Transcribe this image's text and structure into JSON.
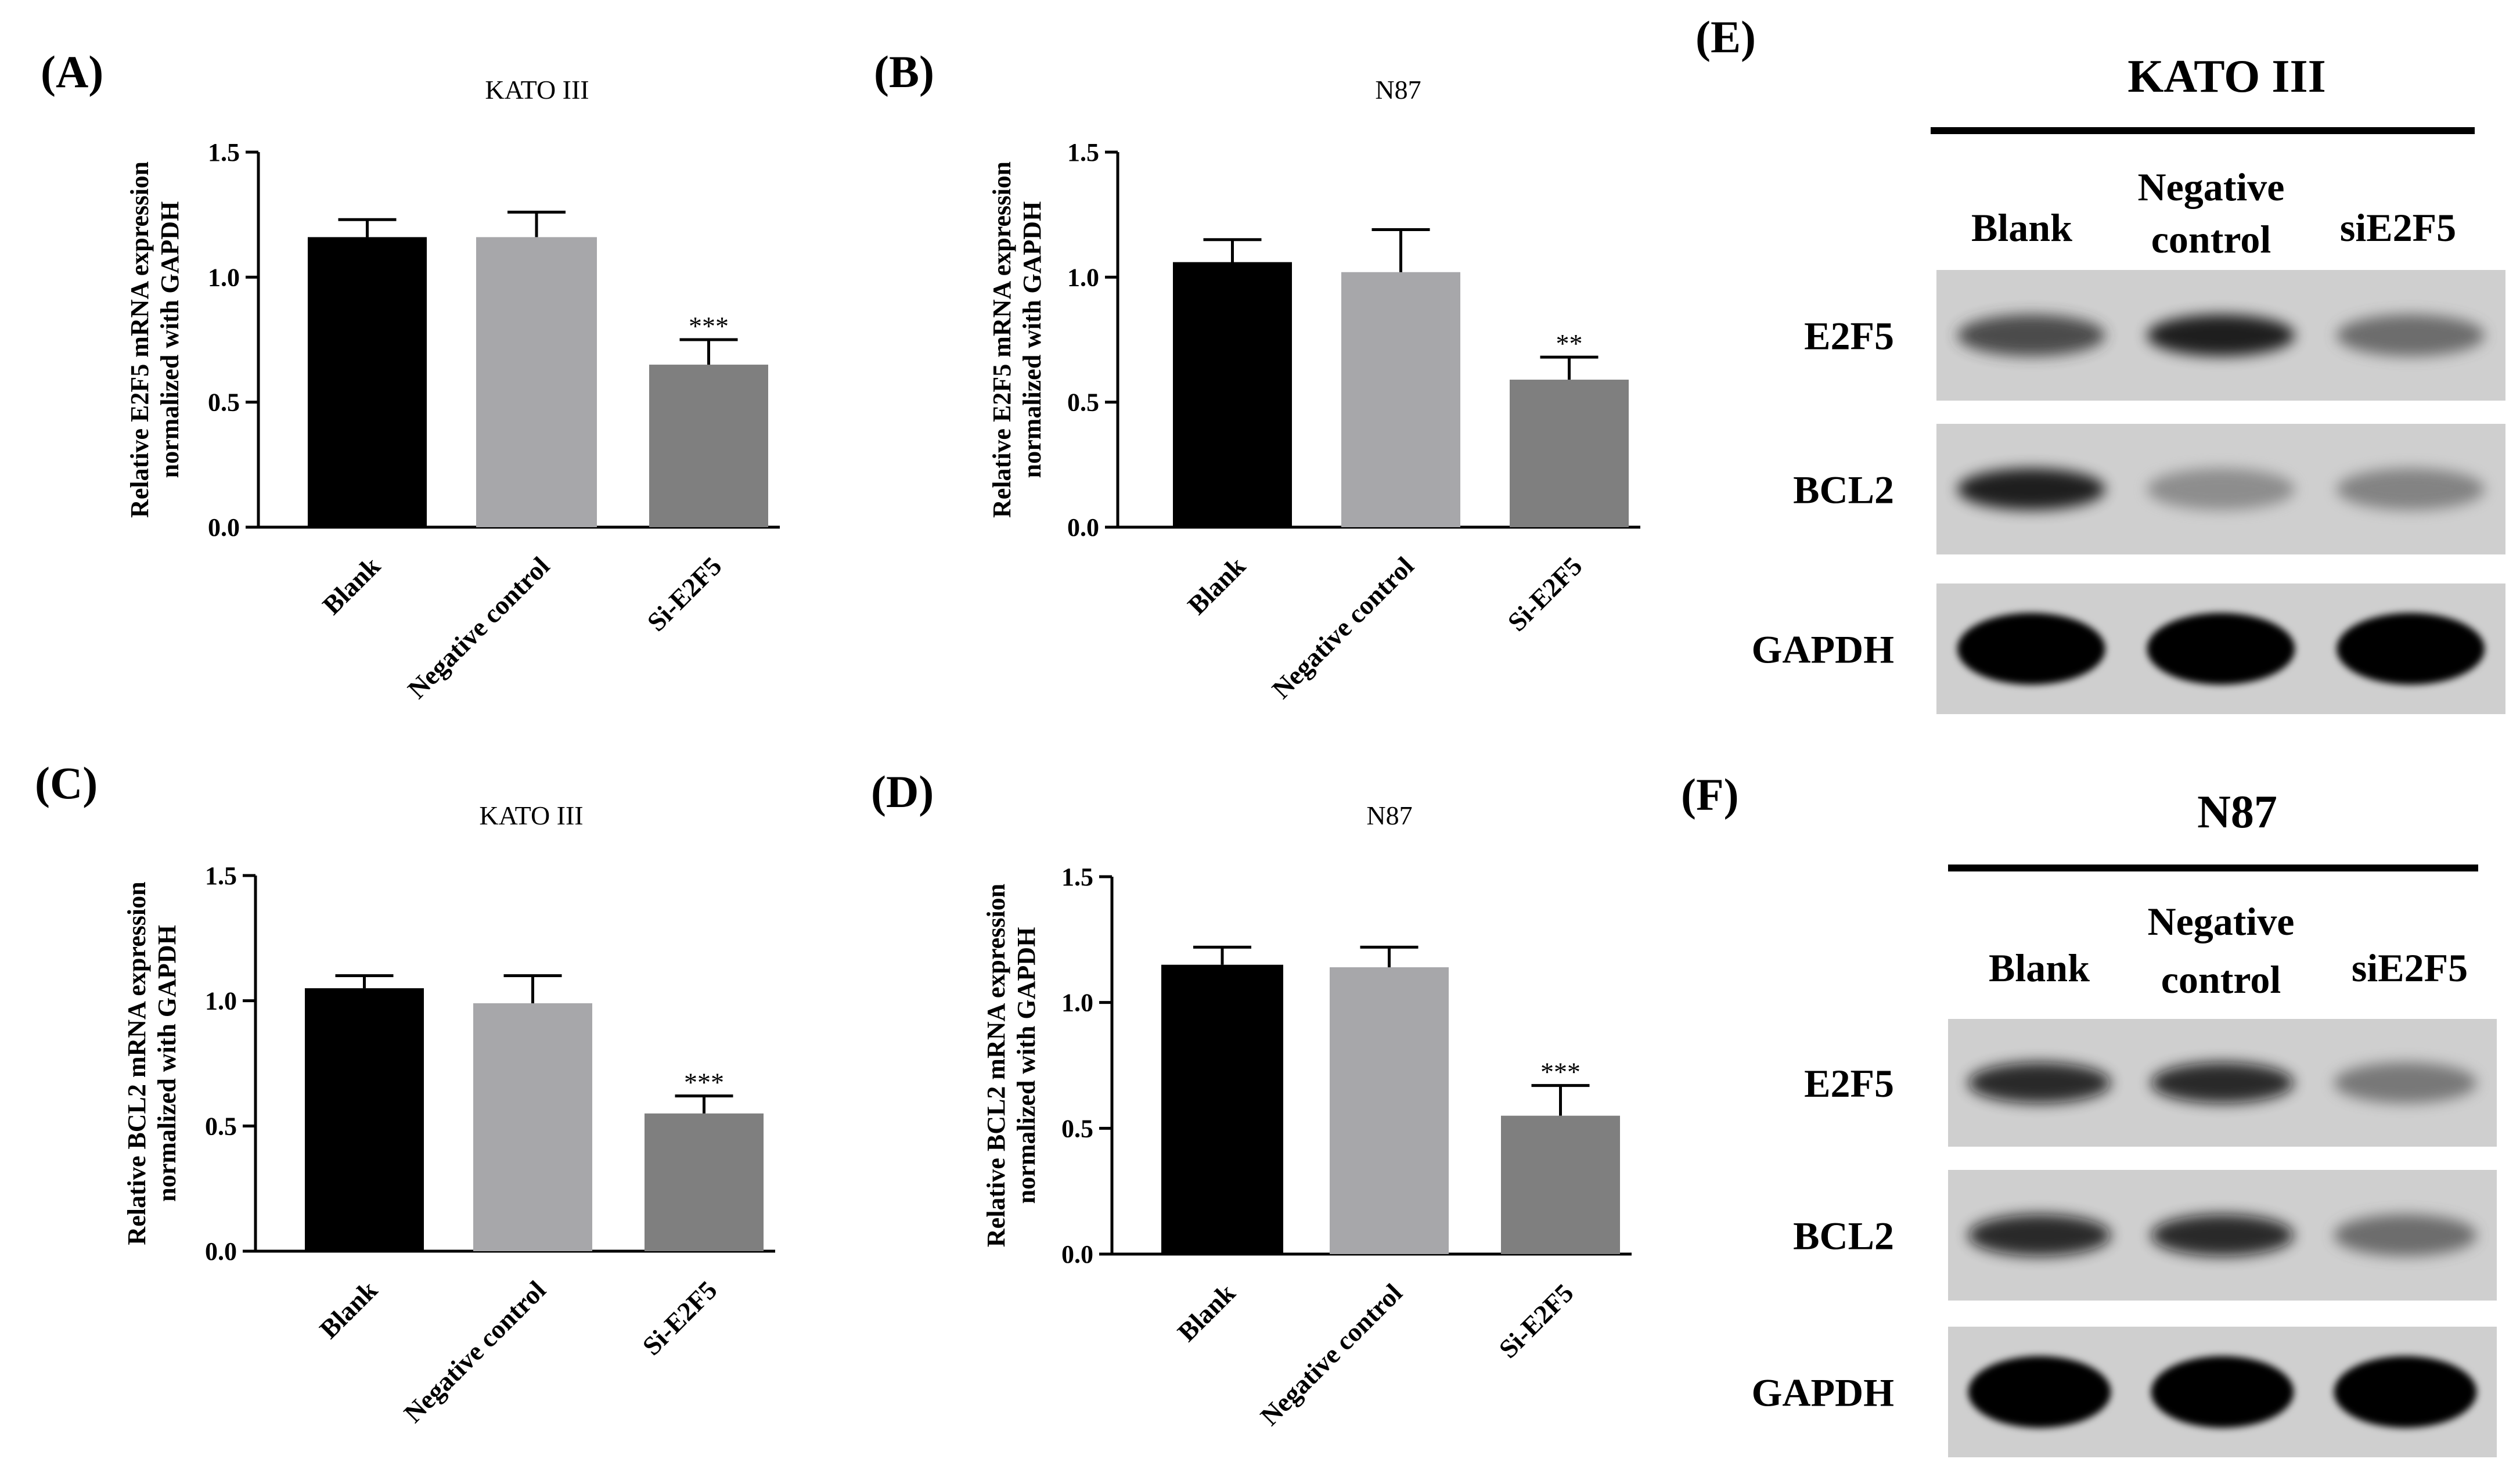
{
  "chart_data": [
    {
      "panel_label": "(A)",
      "type": "bar",
      "title": "KATO III",
      "ylabel_line1": "Relative E2F5 mRNA expression",
      "ylabel_line2": "normalized with GAPDH",
      "categories": [
        "Blank",
        "Negative control",
        "Si-E2F5"
      ],
      "values": [
        1.16,
        1.16,
        0.65
      ],
      "errors": [
        0.07,
        0.1,
        0.1
      ],
      "annotations": [
        "",
        "",
        "***"
      ],
      "colors": [
        "#000000",
        "#a7a7aa",
        "#7f7f7f"
      ],
      "ylim": [
        0,
        1.5
      ],
      "yticks": [
        "0.0",
        "0.5",
        "1.0",
        "1.5"
      ],
      "ytick_values": [
        0,
        0.5,
        1.0,
        1.5
      ]
    },
    {
      "panel_label": "(B)",
      "type": "bar",
      "title": "N87",
      "ylabel_line1": "Relative E2F5 mRNA expression",
      "ylabel_line2": "normalized with GAPDH",
      "categories": [
        "Blank",
        "Negative control",
        "Si-E2F5"
      ],
      "values": [
        1.06,
        1.02,
        0.59
      ],
      "errors": [
        0.09,
        0.17,
        0.09
      ],
      "annotations": [
        "",
        "",
        "**"
      ],
      "colors": [
        "#000000",
        "#a7a7aa",
        "#7f7f7f"
      ],
      "ylim": [
        0,
        1.5
      ],
      "yticks": [
        "0.0",
        "0.5",
        "1.0",
        "1.5"
      ],
      "ytick_values": [
        0,
        0.5,
        1.0,
        1.5
      ]
    },
    {
      "panel_label": "(C)",
      "type": "bar",
      "title": "KATO III",
      "ylabel_line1": "Relative BCL2 mRNA expression",
      "ylabel_line2": "normalized with GAPDH",
      "categories": [
        "Blank",
        "Negative control",
        "Si-E2F5"
      ],
      "values": [
        1.05,
        0.99,
        0.55
      ],
      "errors": [
        0.05,
        0.11,
        0.07
      ],
      "annotations": [
        "",
        "",
        "***"
      ],
      "colors": [
        "#000000",
        "#a7a7aa",
        "#7f7f7f"
      ],
      "ylim": [
        0,
        1.5
      ],
      "yticks": [
        "0.0",
        "0.5",
        "1.0",
        "1.5"
      ],
      "ytick_values": [
        0,
        0.5,
        1.0,
        1.5
      ]
    },
    {
      "panel_label": "(D)",
      "type": "bar",
      "title": "N87",
      "ylabel_line1": "Relative BCL2 mRNA expression",
      "ylabel_line2": "normalized with GAPDH",
      "categories": [
        "Blank",
        "Negative control",
        "Si-E2F5"
      ],
      "values": [
        1.15,
        1.14,
        0.55
      ],
      "errors": [
        0.07,
        0.08,
        0.12
      ],
      "annotations": [
        "",
        "",
        "***"
      ],
      "colors": [
        "#000000",
        "#a7a7aa",
        "#7f7f7f"
      ],
      "ylim": [
        0,
        1.5
      ],
      "yticks": [
        "0.0",
        "0.5",
        "1.0",
        "1.5"
      ],
      "ytick_values": [
        0,
        0.5,
        1.0,
        1.5
      ]
    }
  ],
  "blots": [
    {
      "panel_label": "(E)",
      "title": "KATO III",
      "lanes": [
        {
          "line1": "Blank",
          "line2": ""
        },
        {
          "line1": "Negative",
          "line2": "control"
        },
        {
          "line1": "siE2F5",
          "line2": ""
        }
      ],
      "rows": [
        {
          "label": "E2F5",
          "intensity": [
            0.75,
            0.95,
            0.6
          ]
        },
        {
          "label": "BCL2",
          "intensity": [
            1.0,
            0.45,
            0.5
          ]
        },
        {
          "label": "GAPDH",
          "intensity": [
            1.0,
            1.0,
            1.0
          ]
        }
      ]
    },
    {
      "panel_label": "(F)",
      "title": "N87",
      "lanes": [
        {
          "line1": "Blank",
          "line2": ""
        },
        {
          "line1": "Negative",
          "line2": "control"
        },
        {
          "line1": "siE2F5",
          "line2": ""
        }
      ],
      "rows": [
        {
          "label": "E2F5",
          "intensity": [
            0.9,
            0.9,
            0.55
          ]
        },
        {
          "label": "BCL2",
          "intensity": [
            0.9,
            0.9,
            0.6
          ]
        },
        {
          "label": "GAPDH",
          "intensity": [
            1.0,
            1.0,
            1.0
          ]
        }
      ]
    }
  ]
}
